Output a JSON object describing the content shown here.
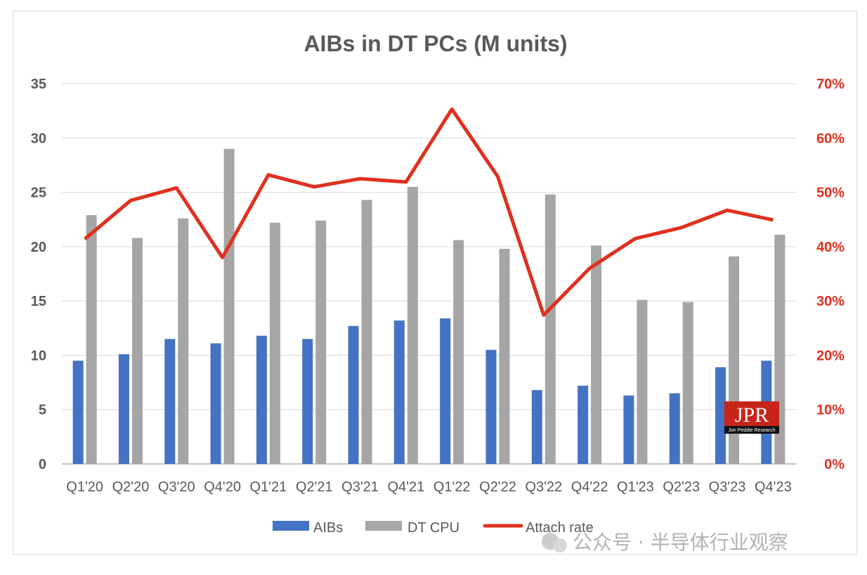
{
  "chart_data": {
    "type": "bar",
    "title": "AIBs in DT PCs (M units)",
    "categories": [
      "Q1'20",
      "Q2'20",
      "Q3'20",
      "Q4'20",
      "Q1'21",
      "Q2'21",
      "Q3'21",
      "Q4'21",
      "Q1'22",
      "Q2'22",
      "Q3'22",
      "Q4'22",
      "Q1'23",
      "Q2'23",
      "Q3'23",
      "Q4'23"
    ],
    "series": [
      {
        "name": "AIBs",
        "type": "bar",
        "axis": "left",
        "color": "#4472c4",
        "values": [
          9.5,
          10.1,
          11.5,
          11.1,
          11.8,
          11.5,
          12.7,
          13.2,
          13.4,
          10.5,
          6.8,
          7.2,
          6.3,
          6.5,
          8.9,
          9.5
        ]
      },
      {
        "name": "DT CPU",
        "type": "bar",
        "axis": "left",
        "color": "#a5a5a5",
        "values": [
          22.9,
          20.8,
          22.6,
          29.0,
          22.2,
          22.4,
          24.3,
          25.5,
          20.6,
          19.8,
          24.8,
          20.1,
          15.1,
          14.9,
          19.1,
          21.1
        ]
      },
      {
        "name": "Attach rate",
        "type": "line",
        "axis": "right",
        "color": "#e0301e",
        "values": [
          41.4,
          48.5,
          50.8,
          38.0,
          53.2,
          51.0,
          52.5,
          51.9,
          65.3,
          52.9,
          27.4,
          36.0,
          41.5,
          43.5,
          46.7,
          44.9
        ]
      }
    ],
    "y_left": {
      "range": [
        0,
        35
      ],
      "ticks": [
        "0",
        "5",
        "10",
        "15",
        "20",
        "25",
        "30",
        "35"
      ]
    },
    "y_right": {
      "range": [
        0,
        70
      ],
      "ticks": [
        "0%",
        "10%",
        "20%",
        "30%",
        "40%",
        "50%",
        "60%",
        "70%"
      ],
      "color": "#e0301e"
    },
    "grid": true,
    "legend": "bottom"
  },
  "logo": {
    "main": "JPR",
    "sub": "Jon Peddie Research"
  },
  "watermark": "公众号 · 半导体行业观察"
}
